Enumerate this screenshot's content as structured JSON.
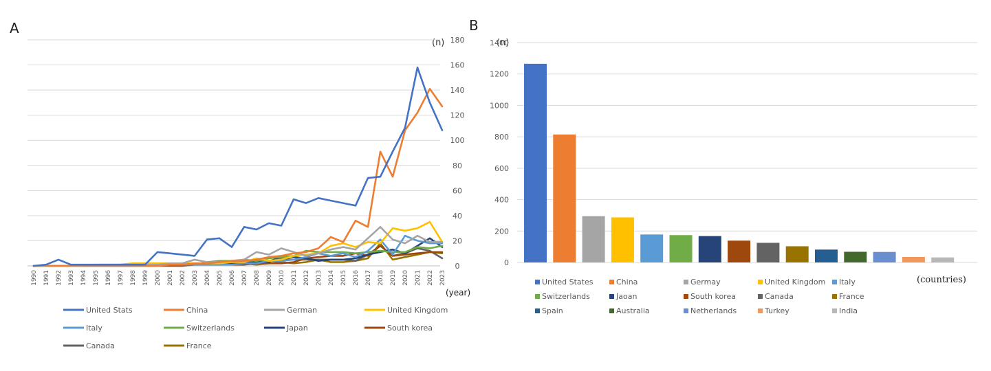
{
  "chart_data": [
    {
      "panel_label": "A",
      "type": "line",
      "unit_label": "(n)",
      "xlabel": "(year)",
      "ylim": [
        0,
        180
      ],
      "y_ticks": [
        0,
        20,
        40,
        60,
        80,
        100,
        120,
        140,
        160,
        180
      ],
      "grid": true,
      "legend_position": "bottom",
      "x": [
        "1990",
        "1991",
        "1992",
        "1993",
        "1994",
        "1995",
        "1996",
        "1997",
        "1998",
        "1999",
        "2000",
        "2001",
        "2002",
        "2003",
        "2004",
        "2005",
        "2006",
        "2007",
        "2008",
        "2009",
        "2010",
        "2011",
        "2012",
        "2013",
        "2014",
        "2015",
        "2016",
        "2017",
        "2018",
        "2019",
        "2020",
        "2021",
        "2022",
        "2023"
      ],
      "series": [
        {
          "name": "United Stats",
          "color": "#4472c4",
          "values": [
            0,
            1,
            5,
            1,
            1,
            1,
            1,
            1,
            1,
            1,
            11,
            10,
            9,
            8,
            21,
            22,
            15,
            31,
            29,
            34,
            32,
            53,
            50,
            54,
            52,
            50,
            48,
            70,
            71,
            91,
            110,
            158,
            130,
            108
          ]
        },
        {
          "name": "China",
          "color": "#ed7d31",
          "values": [
            0,
            0,
            0,
            0,
            0,
            0,
            0,
            0,
            0,
            0,
            0,
            1,
            1,
            2,
            2,
            3,
            4,
            4,
            5,
            7,
            8,
            10,
            11,
            14,
            23,
            19,
            36,
            31,
            91,
            71,
            108,
            122,
            141,
            127
          ]
        },
        {
          "name": "German",
          "color": "#a5a5a5",
          "values": [
            0,
            0,
            0,
            0,
            0,
            0,
            0,
            1,
            1,
            1,
            1,
            2,
            2,
            5,
            3,
            3,
            4,
            5,
            11,
            9,
            14,
            11,
            8,
            10,
            13,
            15,
            13,
            22,
            31,
            21,
            18,
            24,
            19,
            19
          ]
        },
        {
          "name": "United Kingdom",
          "color": "#ffc000",
          "values": [
            0,
            0,
            0,
            0,
            0,
            1,
            1,
            1,
            2,
            2,
            2,
            2,
            2,
            2,
            2,
            2,
            3,
            3,
            6,
            4,
            5,
            8,
            9,
            10,
            16,
            18,
            15,
            19,
            18,
            30,
            28,
            30,
            35,
            19
          ]
        },
        {
          "name": "Italy",
          "color": "#5b9bd5",
          "values": [
            0,
            0,
            0,
            0,
            0,
            0,
            0,
            0,
            0,
            1,
            1,
            1,
            1,
            1,
            1,
            1,
            1,
            2,
            2,
            4,
            4,
            5,
            7,
            10,
            8,
            10,
            7,
            12,
            21,
            9,
            24,
            20,
            18,
            18
          ]
        },
        {
          "name": "Switzerlands",
          "color": "#70ad47",
          "values": [
            0,
            0,
            0,
            0,
            0,
            0,
            0,
            0,
            0,
            0,
            1,
            1,
            1,
            1,
            3,
            4,
            4,
            5,
            4,
            6,
            7,
            8,
            12,
            11,
            11,
            11,
            10,
            11,
            12,
            11,
            11,
            15,
            14,
            16
          ]
        },
        {
          "name": "Japan",
          "color": "#264478",
          "values": [
            0,
            0,
            0,
            0,
            0,
            0,
            0,
            0,
            0,
            1,
            1,
            1,
            1,
            1,
            1,
            1,
            2,
            2,
            3,
            3,
            8,
            7,
            6,
            4,
            5,
            5,
            6,
            9,
            11,
            13,
            10,
            16,
            22,
            15
          ]
        },
        {
          "name": "South korea",
          "color": "#9e480e",
          "values": [
            0,
            0,
            0,
            0,
            0,
            0,
            0,
            0,
            0,
            0,
            0,
            0,
            0,
            1,
            1,
            1,
            1,
            1,
            2,
            2,
            2,
            3,
            6,
            7,
            8,
            8,
            10,
            8,
            16,
            8,
            9,
            10,
            11,
            11
          ]
        },
        {
          "name": "Canada",
          "color": "#636363",
          "values": [
            0,
            0,
            0,
            0,
            0,
            0,
            0,
            0,
            0,
            1,
            1,
            1,
            1,
            1,
            1,
            2,
            2,
            3,
            3,
            4,
            6,
            5,
            5,
            5,
            5,
            5,
            4,
            9,
            16,
            8,
            10,
            14,
            12,
            6
          ]
        },
        {
          "name": "France",
          "color": "#997300",
          "values": [
            0,
            0,
            0,
            0,
            0,
            0,
            0,
            0,
            0,
            0,
            0,
            1,
            1,
            1,
            1,
            1,
            2,
            2,
            1,
            2,
            3,
            2,
            3,
            5,
            3,
            3,
            4,
            6,
            18,
            5,
            7,
            9,
            11,
            10
          ]
        }
      ]
    },
    {
      "panel_label": "B",
      "type": "bar",
      "unit_label": "(n)",
      "xlabel": "(countries)",
      "ylim": [
        0,
        1400
      ],
      "y_ticks": [
        0,
        200,
        400,
        600,
        800,
        1000,
        1200,
        1400
      ],
      "grid": true,
      "legend_position": "bottom",
      "categories": [
        "United States",
        "China",
        "Germay",
        "United Kingdom",
        "Italy",
        "Switzerlands",
        "Jaoan",
        "South korea",
        "Canada",
        "France",
        "Spain",
        "Australia",
        "Netherlands",
        "Turkey",
        "India"
      ],
      "values": [
        1265,
        815,
        295,
        287,
        178,
        174,
        168,
        139,
        125,
        103,
        82,
        68,
        67,
        35,
        32
      ],
      "colors": [
        "#4472c4",
        "#ed7d31",
        "#a5a5a5",
        "#ffc000",
        "#5b9bd5",
        "#70ad47",
        "#264478",
        "#9e480e",
        "#636363",
        "#997300",
        "#255e91",
        "#43682b",
        "#698ed0",
        "#f1975a",
        "#b7b7b7"
      ]
    }
  ]
}
